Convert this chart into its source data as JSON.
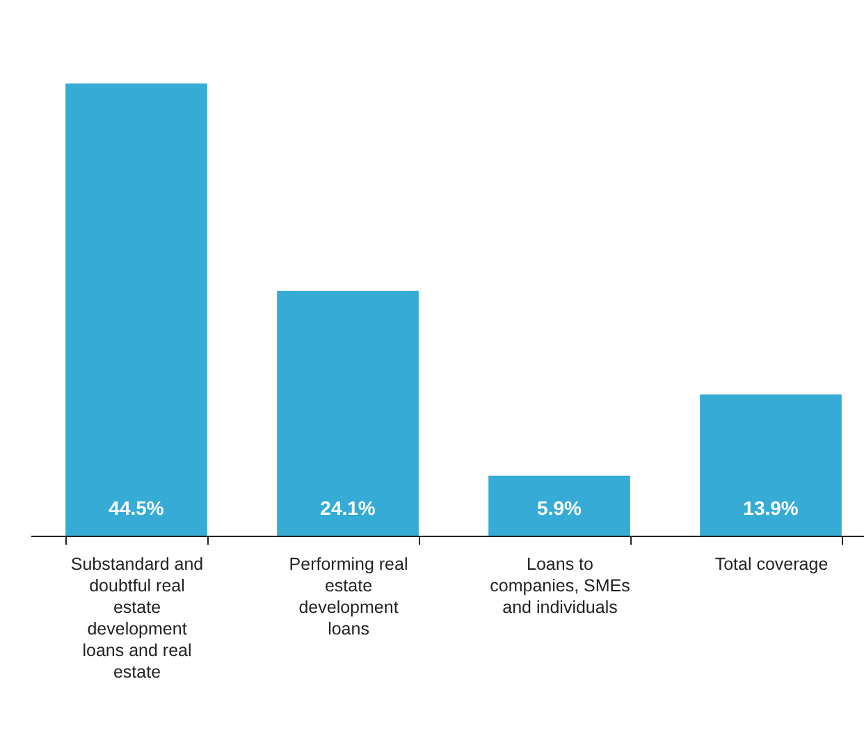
{
  "chart_data": {
    "type": "bar",
    "categories": [
      "Substandard and doubtful real estate development loans and real estate",
      "Performing real estate development loans",
      "Loans to companies, SMEs and individuals",
      "Total coverage"
    ],
    "values": [
      44.5,
      24.1,
      5.9,
      13.9
    ],
    "value_labels": [
      "44.5%",
      "24.1%",
      "5.9%",
      "13.9%"
    ],
    "color": "#35abd5",
    "relative": false,
    "grid": false
  }
}
